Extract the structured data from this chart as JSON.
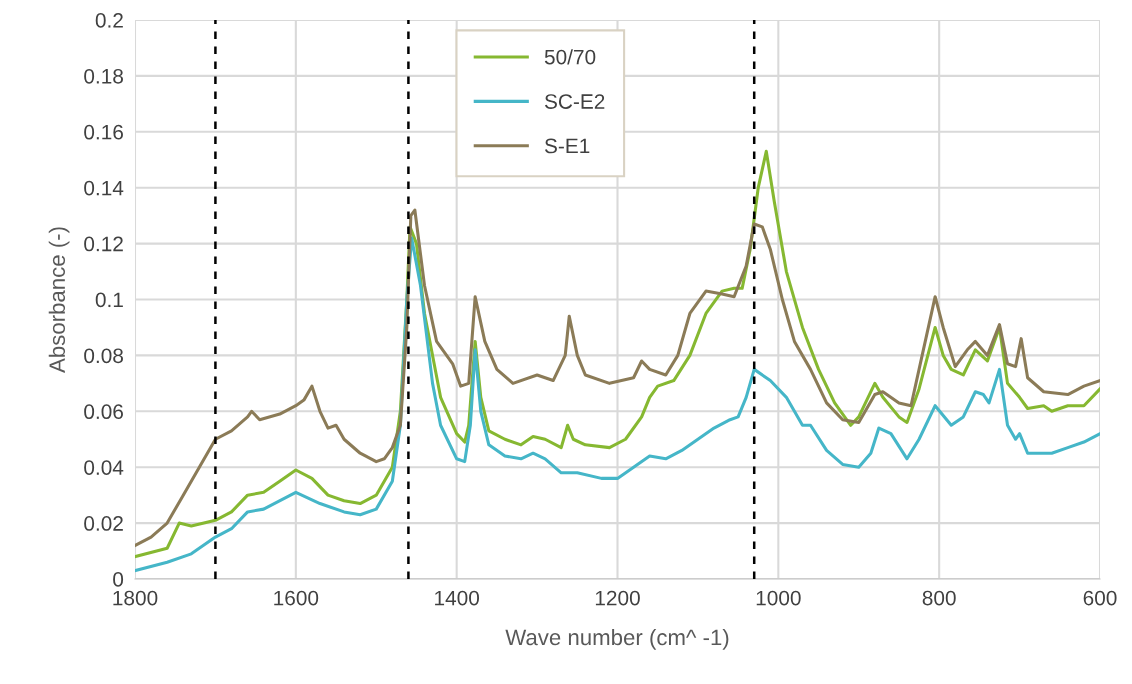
{
  "chart_data": {
    "type": "line",
    "xlabel": "Wave number (cm^ -1)",
    "ylabel": "Absorbance (-)",
    "xlim": [
      1800,
      600
    ],
    "xticks": [
      1800,
      1600,
      1400,
      1200,
      1000,
      800,
      600
    ],
    "ylim": [
      0,
      0.2
    ],
    "yticks": [
      0,
      0.02,
      0.04,
      0.06,
      0.08,
      0.1,
      0.12,
      0.14,
      0.16,
      0.18,
      0.2
    ],
    "grid": true,
    "legend": "top",
    "line_style": "solid",
    "marker": "none",
    "ref_lines": [
      {
        "axis": "x",
        "value": 1700,
        "color": "#000000",
        "line_style": "dashed"
      },
      {
        "axis": "x",
        "value": 1460,
        "color": "#000000",
        "line_style": "dashed"
      },
      {
        "axis": "x",
        "value": 1030,
        "color": "#000000",
        "line_style": "dashed"
      }
    ],
    "series": [
      {
        "name": "50/70",
        "color": "#86b831",
        "x": [
          1800,
          1760,
          1745,
          1730,
          1700,
          1680,
          1660,
          1640,
          1620,
          1600,
          1580,
          1560,
          1540,
          1520,
          1500,
          1480,
          1470,
          1462,
          1458,
          1450,
          1440,
          1420,
          1400,
          1390,
          1385,
          1377,
          1370,
          1360,
          1340,
          1320,
          1305,
          1290,
          1270,
          1262,
          1255,
          1240,
          1210,
          1190,
          1170,
          1160,
          1150,
          1130,
          1110,
          1090,
          1070,
          1055,
          1045,
          1035,
          1025,
          1015,
          1005,
          990,
          970,
          950,
          930,
          910,
          900,
          880,
          870,
          850,
          840,
          825,
          805,
          795,
          785,
          770,
          755,
          740,
          725,
          715,
          700,
          690,
          670,
          660,
          640,
          620,
          600
        ],
        "values": [
          0.008,
          0.011,
          0.02,
          0.019,
          0.021,
          0.024,
          0.03,
          0.031,
          0.035,
          0.039,
          0.036,
          0.03,
          0.028,
          0.027,
          0.03,
          0.04,
          0.06,
          0.1,
          0.126,
          0.12,
          0.095,
          0.065,
          0.052,
          0.049,
          0.055,
          0.085,
          0.065,
          0.053,
          0.05,
          0.048,
          0.051,
          0.05,
          0.047,
          0.055,
          0.05,
          0.048,
          0.047,
          0.05,
          0.058,
          0.065,
          0.069,
          0.071,
          0.08,
          0.095,
          0.103,
          0.104,
          0.104,
          0.118,
          0.14,
          0.153,
          0.135,
          0.11,
          0.09,
          0.075,
          0.063,
          0.055,
          0.058,
          0.07,
          0.065,
          0.058,
          0.056,
          0.068,
          0.09,
          0.08,
          0.075,
          0.073,
          0.082,
          0.078,
          0.09,
          0.07,
          0.065,
          0.061,
          0.062,
          0.06,
          0.062,
          0.062,
          0.068
        ]
      },
      {
        "name": "SC-E2",
        "color": "#45b6c8",
        "x": [
          1800,
          1760,
          1730,
          1700,
          1680,
          1660,
          1640,
          1600,
          1570,
          1540,
          1520,
          1500,
          1480,
          1470,
          1462,
          1456,
          1445,
          1430,
          1420,
          1400,
          1390,
          1383,
          1377,
          1370,
          1360,
          1340,
          1320,
          1305,
          1290,
          1270,
          1250,
          1220,
          1200,
          1180,
          1160,
          1140,
          1120,
          1100,
          1080,
          1060,
          1050,
          1040,
          1030,
          1010,
          990,
          970,
          960,
          940,
          920,
          900,
          885,
          875,
          860,
          840,
          825,
          805,
          785,
          770,
          755,
          745,
          738,
          725,
          715,
          705,
          700,
          690,
          660,
          640,
          620,
          600
        ],
        "values": [
          0.003,
          0.006,
          0.009,
          0.015,
          0.018,
          0.024,
          0.025,
          0.031,
          0.027,
          0.024,
          0.023,
          0.025,
          0.035,
          0.055,
          0.1,
          0.122,
          0.105,
          0.07,
          0.055,
          0.043,
          0.042,
          0.055,
          0.082,
          0.06,
          0.048,
          0.044,
          0.043,
          0.045,
          0.043,
          0.038,
          0.038,
          0.036,
          0.036,
          0.04,
          0.044,
          0.043,
          0.046,
          0.05,
          0.054,
          0.057,
          0.058,
          0.065,
          0.075,
          0.071,
          0.065,
          0.055,
          0.055,
          0.046,
          0.041,
          0.04,
          0.045,
          0.054,
          0.052,
          0.043,
          0.05,
          0.062,
          0.055,
          0.058,
          0.067,
          0.066,
          0.063,
          0.075,
          0.055,
          0.05,
          0.052,
          0.045,
          0.045,
          0.047,
          0.049,
          0.052
        ]
      },
      {
        "name": "S-E1",
        "color": "#8b7b57",
        "x": [
          1800,
          1780,
          1760,
          1740,
          1720,
          1700,
          1680,
          1660,
          1655,
          1645,
          1620,
          1600,
          1590,
          1580,
          1570,
          1560,
          1550,
          1540,
          1520,
          1500,
          1490,
          1480,
          1470,
          1462,
          1457,
          1452,
          1440,
          1425,
          1405,
          1395,
          1385,
          1377,
          1365,
          1350,
          1330,
          1300,
          1280,
          1265,
          1260,
          1250,
          1240,
          1210,
          1180,
          1170,
          1160,
          1140,
          1125,
          1110,
          1090,
          1070,
          1055,
          1040,
          1030,
          1020,
          1010,
          995,
          980,
          960,
          940,
          920,
          900,
          880,
          870,
          850,
          835,
          825,
          805,
          795,
          780,
          765,
          755,
          740,
          725,
          715,
          705,
          698,
          690,
          670,
          640,
          620,
          600
        ],
        "values": [
          0.012,
          0.015,
          0.02,
          0.03,
          0.04,
          0.05,
          0.053,
          0.058,
          0.06,
          0.057,
          0.059,
          0.062,
          0.064,
          0.069,
          0.06,
          0.054,
          0.055,
          0.05,
          0.045,
          0.042,
          0.043,
          0.047,
          0.055,
          0.09,
          0.13,
          0.132,
          0.105,
          0.085,
          0.077,
          0.069,
          0.07,
          0.101,
          0.085,
          0.075,
          0.07,
          0.073,
          0.071,
          0.08,
          0.094,
          0.08,
          0.073,
          0.07,
          0.072,
          0.078,
          0.075,
          0.073,
          0.08,
          0.095,
          0.103,
          0.102,
          0.101,
          0.112,
          0.127,
          0.126,
          0.118,
          0.1,
          0.085,
          0.075,
          0.063,
          0.057,
          0.056,
          0.066,
          0.067,
          0.063,
          0.062,
          0.075,
          0.101,
          0.09,
          0.076,
          0.082,
          0.085,
          0.08,
          0.091,
          0.077,
          0.076,
          0.086,
          0.072,
          0.067,
          0.066,
          0.069,
          0.071
        ]
      }
    ]
  }
}
